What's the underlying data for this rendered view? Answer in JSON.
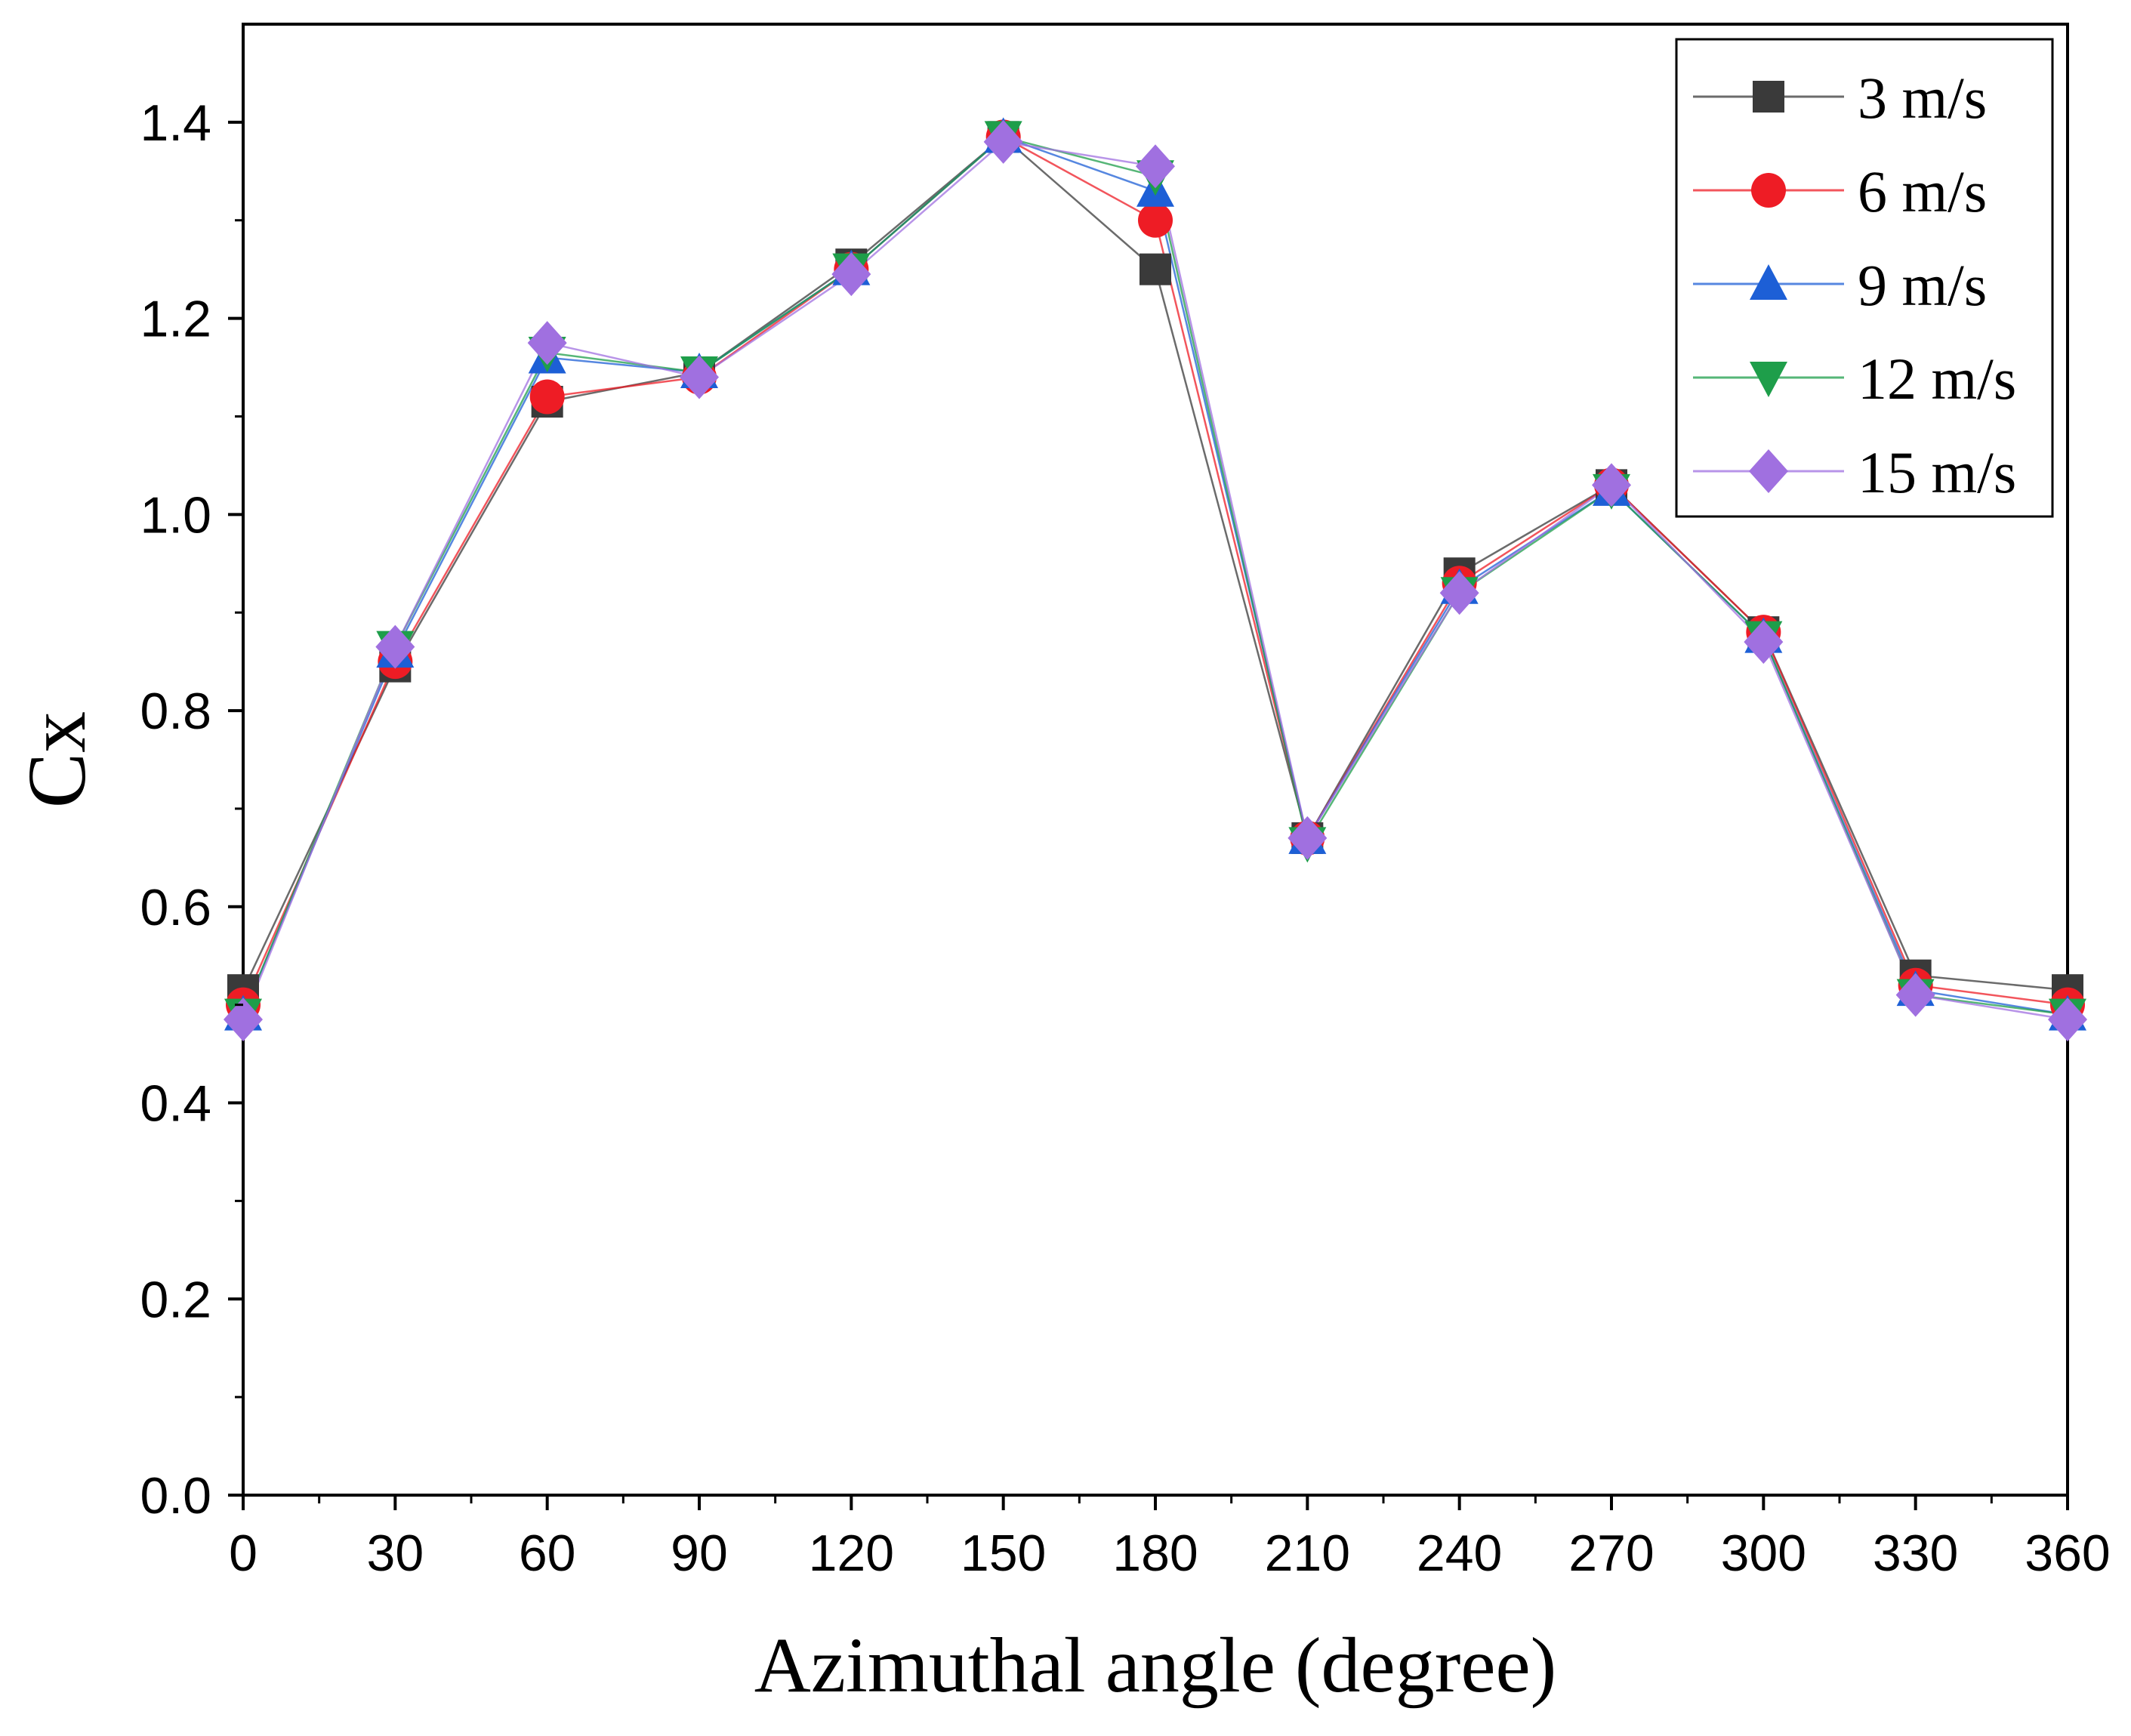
{
  "chart_data": {
    "type": "line",
    "title": "",
    "xlabel": "Azimuthal angle (degree)",
    "ylabel": "Cx",
    "xlim": [
      0,
      360
    ],
    "ylim": [
      0,
      1.5
    ],
    "x_ticks": [
      "0",
      "30",
      "60",
      "90",
      "120",
      "150",
      "180",
      "210",
      "240",
      "270",
      "300",
      "330",
      "360"
    ],
    "y_ticks": [
      "0.0",
      "0.2",
      "0.4",
      "0.6",
      "0.8",
      "1.0",
      "1.2",
      "1.4"
    ],
    "grid": false,
    "legend_position": "top-right",
    "x": [
      0,
      30,
      60,
      90,
      120,
      150,
      180,
      210,
      240,
      270,
      300,
      330,
      360
    ],
    "series": [
      {
        "name": "3 m/s",
        "marker": "square",
        "color": "#3a3a3a",
        "values": [
          0.515,
          0.845,
          1.115,
          1.145,
          1.255,
          1.385,
          1.25,
          0.67,
          0.94,
          1.03,
          0.88,
          0.53,
          0.515
        ]
      },
      {
        "name": "6 m/s",
        "marker": "circle",
        "color": "#ee1c25",
        "values": [
          0.5,
          0.85,
          1.12,
          1.14,
          1.25,
          1.385,
          1.3,
          0.67,
          0.93,
          1.03,
          0.88,
          0.52,
          0.5
        ]
      },
      {
        "name": "9 m/s",
        "marker": "triangle-up",
        "color": "#1d5fd6",
        "values": [
          0.49,
          0.86,
          1.16,
          1.145,
          1.25,
          1.385,
          1.33,
          0.67,
          0.925,
          1.025,
          0.875,
          0.515,
          0.49
        ]
      },
      {
        "name": "12 m/s",
        "marker": "triangle-down",
        "color": "#1e9e4a",
        "values": [
          0.49,
          0.865,
          1.165,
          1.145,
          1.25,
          1.385,
          1.345,
          0.665,
          0.92,
          1.025,
          0.875,
          0.51,
          0.49
        ]
      },
      {
        "name": "15 m/s",
        "marker": "diamond",
        "color": "#a070e0",
        "values": [
          0.485,
          0.865,
          1.175,
          1.14,
          1.245,
          1.38,
          1.355,
          0.67,
          0.92,
          1.03,
          0.87,
          0.51,
          0.485
        ]
      }
    ]
  }
}
